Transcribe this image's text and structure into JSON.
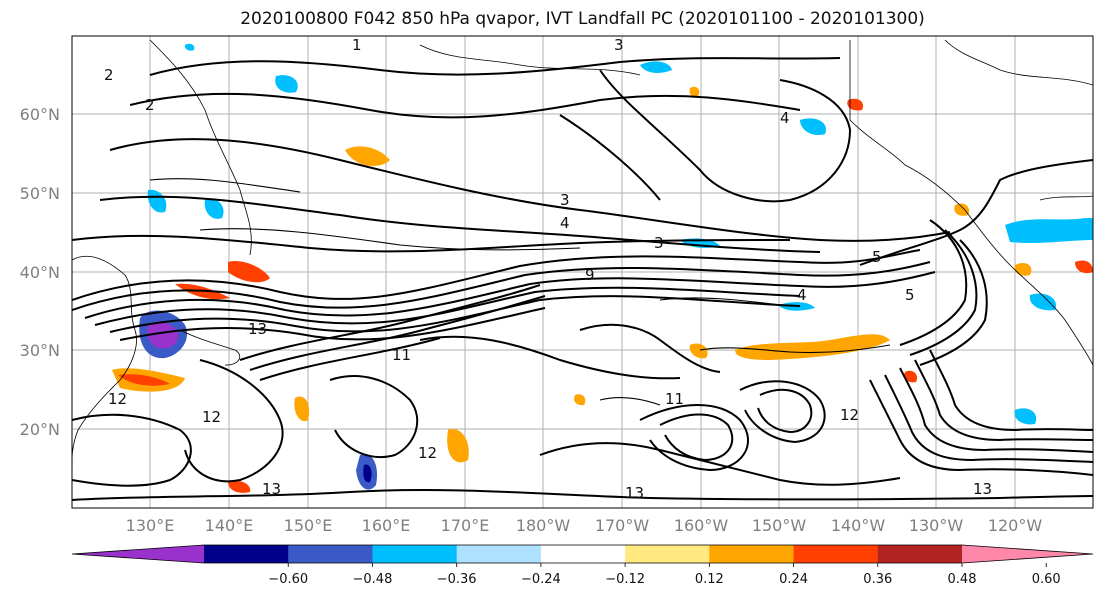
{
  "title": "2020100800 F042 850 hPa qvapor, IVT Landfall PC (2020101100 - 2020101300)",
  "lat_labels": [
    "60°N",
    "50°N",
    "40°N",
    "30°N",
    "20°N"
  ],
  "lon_labels": [
    "130°E",
    "140°E",
    "150°E",
    "160°E",
    "170°E",
    "180°W",
    "170°W",
    "160°W",
    "150°W",
    "140°W",
    "130°W",
    "120°W"
  ],
  "colorbar": {
    "ticks": [
      "−0.60",
      "−0.48",
      "−0.36",
      "−0.24",
      "−0.12",
      "0.12",
      "0.24",
      "0.36",
      "0.48",
      "0.60"
    ],
    "colors": [
      "#9932CC",
      "#00008B",
      "#3A5BC7",
      "#00BFFF",
      "#ADE1FF",
      "#FFFFFF",
      "#FFE980",
      "#FFA500",
      "#FF4000",
      "#B22222",
      "#FF88AA"
    ]
  },
  "contour_labels": [
    "1",
    "2",
    "2",
    "3",
    "3",
    "3",
    "4",
    "4",
    "4",
    "5",
    "5",
    "9",
    "11",
    "11",
    "12",
    "12",
    "12",
    "12",
    "13",
    "13",
    "13",
    "13"
  ]
}
